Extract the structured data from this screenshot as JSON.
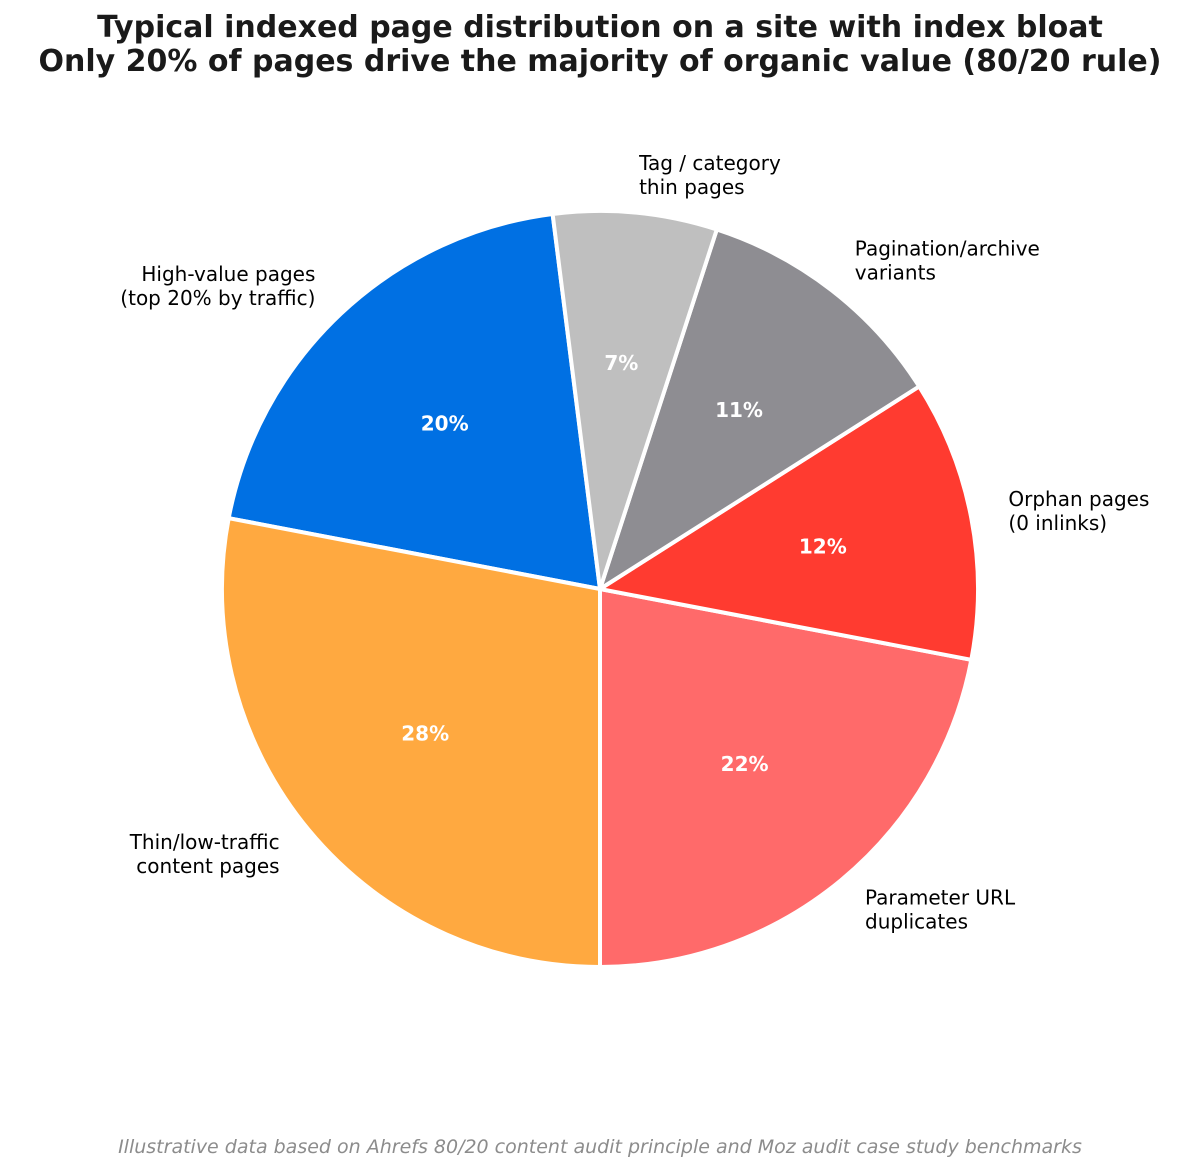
{
  "chart_data": {
    "type": "pie",
    "title": "Typical indexed page distribution on a site with index bloat",
    "subtitle": "Only 20% of pages drive the majority of organic value (80/20 rule)",
    "slices": [
      {
        "label": [
          "High-value pages",
          "(top 20% by traffic)"
        ],
        "value": 20,
        "pct_label": "20%",
        "color": "#0070e3"
      },
      {
        "label": [
          "Thin/low-traffic",
          "content pages"
        ],
        "value": 28,
        "pct_label": "28%",
        "color": "#ffa940"
      },
      {
        "label": [
          "Parameter URL",
          "duplicates"
        ],
        "value": 22,
        "pct_label": "22%",
        "color": "#ff6a6a"
      },
      {
        "label": [
          "Orphan pages",
          "(0 inlinks)"
        ],
        "value": 12,
        "pct_label": "12%",
        "color": "#ff3b30"
      },
      {
        "label": [
          "Pagination/archive",
          "variants"
        ],
        "value": 11,
        "pct_label": "11%",
        "color": "#8e8d92"
      },
      {
        "label": [
          "Tag / category",
          "thin pages"
        ],
        "value": 7,
        "pct_label": "7%",
        "color": "#bfbfbf"
      }
    ],
    "start_angle_deg": 97.2,
    "direction": "counterclockwise",
    "footnote": "Illustrative data based on Ahrefs 80/20 content audit principle and Moz audit case study benchmarks"
  }
}
